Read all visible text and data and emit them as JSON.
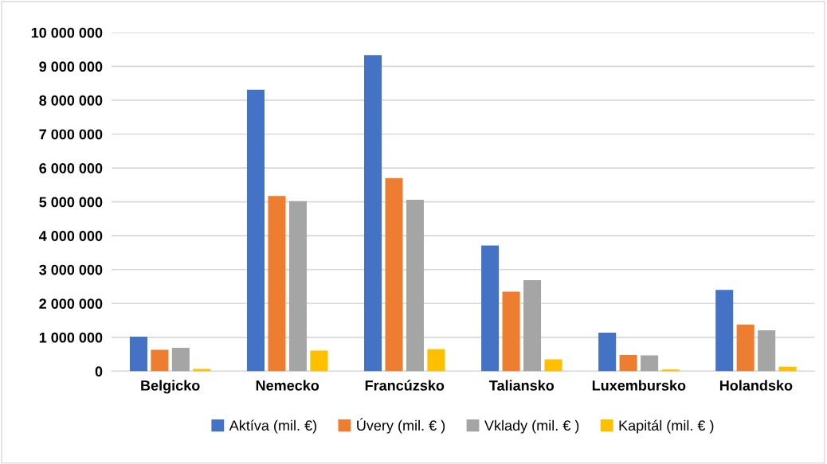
{
  "chart_data": {
    "type": "bar",
    "categories": [
      "Belgicko",
      "Nemecko",
      "Francúzsko",
      "Taliansko",
      "Luxembursko",
      "Holandsko"
    ],
    "series": [
      {
        "name": "Aktíva (mil. €)",
        "color": "#4472c4",
        "values": [
          1020000,
          8310000,
          9330000,
          3710000,
          1140000,
          2400000
        ]
      },
      {
        "name": "Úvery (mil. € )",
        "color": "#ed7d31",
        "values": [
          630000,
          5170000,
          5700000,
          2350000,
          480000,
          1380000
        ]
      },
      {
        "name": "Vklady (mil. € )",
        "color": "#a5a5a5",
        "values": [
          690000,
          5020000,
          5060000,
          2690000,
          470000,
          1210000
        ]
      },
      {
        "name": "Kapitál (mil. € )",
        "color": "#ffc000",
        "values": [
          70000,
          610000,
          650000,
          350000,
          50000,
          130000
        ]
      }
    ],
    "ylim": [
      0,
      10000000
    ],
    "yticks": [
      {
        "value": 0,
        "label": "0"
      },
      {
        "value": 1000000,
        "label": "1 000 000"
      },
      {
        "value": 2000000,
        "label": "2 000 000"
      },
      {
        "value": 3000000,
        "label": "3 000 000"
      },
      {
        "value": 4000000,
        "label": "4 000 000"
      },
      {
        "value": 5000000,
        "label": "5 000 000"
      },
      {
        "value": 6000000,
        "label": "6 000 000"
      },
      {
        "value": 7000000,
        "label": "7 000 000"
      },
      {
        "value": 8000000,
        "label": "8 000 000"
      },
      {
        "value": 9000000,
        "label": "9 000 000"
      },
      {
        "value": 10000000,
        "label": "10 000 000"
      }
    ],
    "grid": "y",
    "legend": "bottom"
  }
}
